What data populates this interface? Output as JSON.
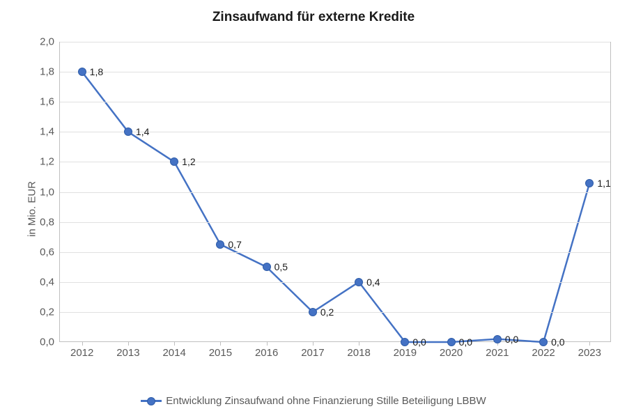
{
  "chart": {
    "type": "line",
    "title": "Zinsaufwand für externe Kredite",
    "title_fontsize": 19,
    "ylabel": "in Mio. EUR",
    "label_fontsize": 15,
    "categories": [
      "2012",
      "2013",
      "2014",
      "2015",
      "2016",
      "2017",
      "2018",
      "2019",
      "2020",
      "2021",
      "2022",
      "2023"
    ],
    "series": [
      {
        "name": "Entwicklung Zinsaufwand ohne Finanzierung Stille Beteiligung LBBW",
        "values": [
          1.8,
          1.4,
          1.2,
          0.65,
          0.5,
          0.2,
          0.4,
          0.0,
          0.0,
          0.02,
          0.0,
          1.06
        ],
        "data_labels": [
          "1,8",
          "1,4",
          "1,2",
          "0,7",
          "0,5",
          "0,2",
          "0,4",
          "0,0",
          "0,0",
          "0,0",
          "0,0",
          "1,1"
        ],
        "color": "#4472c4",
        "line_width": 2.5,
        "marker_size": 10,
        "marker_fill": "#4472c4",
        "marker_stroke": "#2e5ca8"
      }
    ],
    "ylim": [
      0.0,
      2.0
    ],
    "ytick_step": 0.2,
    "ytick_labels": [
      "0,0",
      "0,2",
      "0,4",
      "0,6",
      "0,8",
      "1,0",
      "1,2",
      "1,4",
      "1,6",
      "1,8",
      "2,0"
    ],
    "background_color": "#ffffff",
    "grid_color": "#e0e0e0",
    "axis_color": "#bfbfbf",
    "tick_fontsize": 15,
    "legend": {
      "position": "bottom",
      "fontsize": 15
    }
  }
}
